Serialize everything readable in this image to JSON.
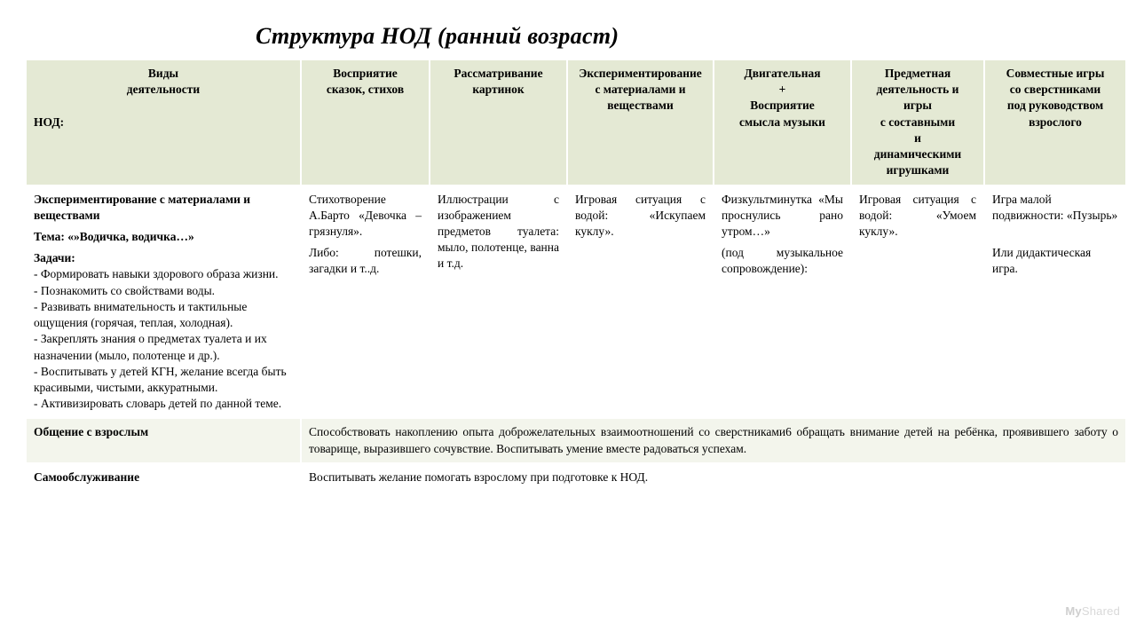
{
  "title": "Структура НОД (ранний возраст)",
  "columns": {
    "c1_line1": "Виды",
    "c1_line2": "деятельности",
    "c1_line3": "НОД:",
    "c2_line1": "Восприятие",
    "c2_line2": "сказок, стихов",
    "c3_line1": "Рассматривание",
    "c3_line2": "картинок",
    "c4_line1": "Экспериментирование",
    "c4_line2": "с материалами и",
    "c4_line3": "веществами",
    "c5_line1": "Двигательная",
    "c5_line2": "+",
    "c5_line3": "Восприятие",
    "c5_line4": "смысла музыки",
    "c6_line1": "Предметная",
    "c6_line2": "деятельность и",
    "c6_line3": "игры",
    "c6_line4": "с составными",
    "c6_line5": "и",
    "c6_line6": "динамическими",
    "c6_line7": "игрушками",
    "c7_line1": "Совместные игры",
    "c7_line2": "со сверстниками",
    "c7_line3": "под руководством",
    "c7_line4": "взрослого"
  },
  "row1": {
    "header_bold1": "Экспериментирование с материалами и веществами",
    "theme_label": "Тема: «»Водичка, водичка…»",
    "tasks_label": "Задачи:",
    "t1": "- Формировать навыки здорового образа жизни.",
    "t2": "- Познакомить со свойствами воды.",
    "t3": "- Развивать внимательность и тактильные ощущения (горячая, теплая, холодная).",
    "t4": "- Закреплять знания о предметах туалета и их назначении (мыло, полотенце и др.).",
    "t5": "- Воспитывать у детей КГН, желание всегда быть красивыми, чистыми, аккуратными.",
    "t6": "- Активизировать словарь детей по данной теме.",
    "c2a": "Стихотворение А.Барто «Девочка – грязнуля».",
    "c2b": "Либо: потешки, загадки и т..д.",
    "c3a": "Иллюстрации с изображением предметов туалета: мыло, полотенце, ванна и т.д.",
    "c4a": "Игровая ситуация с водой: «Искупаем куклу».",
    "c5a": "Физкультминутка «Мы проснулись рано утром…»",
    "c5b": "(под музыкальное сопровождение):",
    "c6a": "Игровая ситуация с водой: «Умоем куклу».",
    "c7a": "Игра малой подвижности: «Пузырь»",
    "c7b": "Или дидактическая игра."
  },
  "row2": {
    "label": "Общение с взрослым",
    "text": "Способствовать накоплению опыта доброжелательных взаимоотношений со сверстниками6 обращать внимание детей на ребёнка, проявившего заботу о товарище, выразившего сочувствие. Воспитывать умение вместе радоваться успехам."
  },
  "row3": {
    "label": "Самообслуживание",
    "text": "Воспитывать желание помогать взрослому при подготовке к НОД."
  },
  "watermark": {
    "my": "My",
    "rest": "Shared"
  },
  "style": {
    "header_bg": "#e4e9d4",
    "alt_row_bg": "#f3f5ec",
    "border_color": "#ffffff",
    "font_size_body": 13.5,
    "title_font_size": 26
  }
}
